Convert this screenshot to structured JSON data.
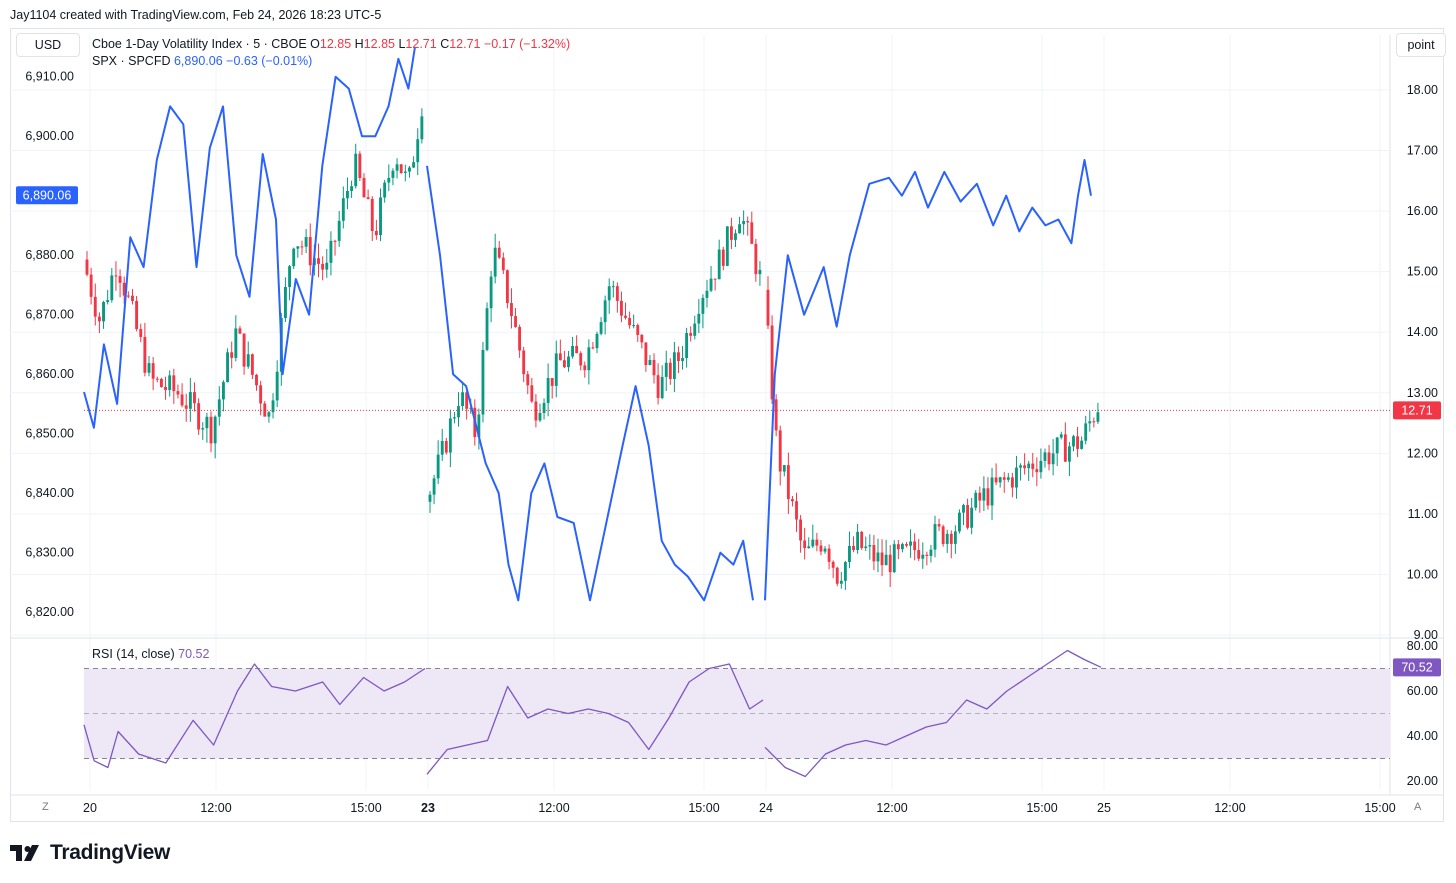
{
  "credit": "Jay1104 created with TradingView.com, Feb 24, 2026 18:23 UTC-5",
  "currency": "USD",
  "scale_mode": "point",
  "brand": "TradingView",
  "corner_left": "Z",
  "corner_right": "A",
  "legend": {
    "vix": {
      "name": "Cboe 1-Day Volatility Index · 5 · CBOE",
      "o_label": "O",
      "o": "12.85",
      "h_label": "H",
      "h": "12.85",
      "l_label": "L",
      "l": "12.71",
      "c_label": "C",
      "c": "12.71",
      "change": "−0.17 (−1.32%)"
    },
    "spx": {
      "name": "SPX · SPCFD",
      "value": "6,890.06",
      "change": "−0.63 (−0.01%)"
    },
    "rsi": {
      "name": "RSI (14, close)",
      "value": "70.52"
    }
  },
  "colors": {
    "up": "#089981",
    "down": "#f23645",
    "spx_line": "#2962ff",
    "rsi_line": "#7e57c2",
    "rsi_band": "#ede7f6",
    "grid": "#f0f3fa"
  },
  "chart_data": [
    {
      "type": "candlestick",
      "name": "Cboe 1-Day Volatility Index · 5 · CBOE",
      "axis": "right",
      "ylim": [
        9,
        18.4
      ],
      "last_price": 12.71,
      "x_ticks": [
        "20",
        "12:00",
        "15:00",
        "23",
        "12:00",
        "15:00",
        "24",
        "12:00",
        "15:00",
        "25",
        "12:00",
        "15:00"
      ],
      "x_ticks_bold": [
        "23"
      ],
      "y_ticks": [
        "18.00",
        "17.00",
        "16.00",
        "15.00",
        "14.00",
        "13.00",
        "12.00",
        "11.00",
        "10.00",
        "9.00"
      ],
      "bar_count": 246,
      "sessions": [
        {
          "day": "20",
          "points": [
            [
              0,
              15.2
            ],
            [
              0.05,
              14.2
            ],
            [
              0.1,
              15.2
            ],
            [
              0.2,
              13.2
            ],
            [
              0.28,
              13.0
            ],
            [
              0.38,
              12.4
            ],
            [
              0.45,
              14.0
            ],
            [
              0.55,
              12.6
            ],
            [
              0.62,
              15.6
            ],
            [
              0.72,
              15.0
            ],
            [
              0.8,
              16.8
            ],
            [
              0.86,
              15.6
            ],
            [
              0.92,
              17.0
            ],
            [
              0.96,
              16.4
            ],
            [
              1.0,
              17.8
            ]
          ]
        },
        {
          "day": "23",
          "points": [
            [
              0,
              11.2
            ],
            [
              0.05,
              12.0
            ],
            [
              0.1,
              13.0
            ],
            [
              0.15,
              12.3
            ],
            [
              0.2,
              15.4
            ],
            [
              0.25,
              14.5
            ],
            [
              0.32,
              12.7
            ],
            [
              0.4,
              13.5
            ],
            [
              0.48,
              13.6
            ],
            [
              0.55,
              14.8
            ],
            [
              0.62,
              14.0
            ],
            [
              0.7,
              13.1
            ],
            [
              0.76,
              13.6
            ],
            [
              0.82,
              14.6
            ],
            [
              0.88,
              15.2
            ],
            [
              0.94,
              16.0
            ],
            [
              0.98,
              15.3
            ],
            [
              1.0,
              14.9
            ]
          ]
        },
        {
          "day": "24",
          "points": [
            [
              0,
              14.7
            ],
            [
              0.04,
              12.0
            ],
            [
              0.08,
              11.2
            ],
            [
              0.12,
              10.3
            ],
            [
              0.18,
              10.6
            ],
            [
              0.22,
              10.0
            ],
            [
              0.28,
              10.5
            ],
            [
              0.35,
              10.2
            ],
            [
              0.42,
              10.3
            ],
            [
              0.5,
              10.6
            ],
            [
              0.58,
              10.8
            ],
            [
              0.66,
              11.3
            ],
            [
              0.74,
              11.6
            ],
            [
              0.82,
              11.9
            ],
            [
              0.9,
              12.1
            ],
            [
              0.95,
              12.2
            ],
            [
              1.0,
              12.8
            ]
          ]
        }
      ]
    },
    {
      "type": "line",
      "name": "SPX · SPCFD",
      "axis": "left",
      "ylim": [
        6816,
        6917
      ],
      "last_value": 6890.06,
      "y_ticks": [
        "6,910.00",
        "6,900.00",
        "6,890.00",
        "6,880.00",
        "6,870.00",
        "6,860.00",
        "6,850.00",
        "6,840.00",
        "6,830.00",
        "6,820.00"
      ],
      "sessions": [
        {
          "day": "20",
          "points": [
            [
              0,
              6857
            ],
            [
              0.03,
              6851
            ],
            [
              0.06,
              6865
            ],
            [
              0.1,
              6855
            ],
            [
              0.14,
              6883
            ],
            [
              0.18,
              6878
            ],
            [
              0.22,
              6896
            ],
            [
              0.26,
              6905
            ],
            [
              0.3,
              6902
            ],
            [
              0.34,
              6878
            ],
            [
              0.38,
              6898
            ],
            [
              0.42,
              6905
            ],
            [
              0.46,
              6880
            ],
            [
              0.5,
              6873
            ],
            [
              0.54,
              6897
            ],
            [
              0.58,
              6886
            ],
            [
              0.6,
              6860
            ],
            [
              0.64,
              6876
            ],
            [
              0.68,
              6870
            ],
            [
              0.72,
              6895
            ],
            [
              0.76,
              6910
            ],
            [
              0.8,
              6908
            ],
            [
              0.84,
              6900
            ],
            [
              0.88,
              6900
            ],
            [
              0.92,
              6905
            ],
            [
              0.95,
              6913
            ],
            [
              0.98,
              6908
            ],
            [
              1.0,
              6915
            ]
          ]
        },
        {
          "day": "23",
          "points": [
            [
              0,
              6895
            ],
            [
              0.04,
              6880
            ],
            [
              0.08,
              6860
            ],
            [
              0.12,
              6858
            ],
            [
              0.18,
              6845
            ],
            [
              0.22,
              6840
            ],
            [
              0.25,
              6828
            ],
            [
              0.28,
              6822
            ],
            [
              0.32,
              6840
            ],
            [
              0.36,
              6845
            ],
            [
              0.4,
              6836
            ],
            [
              0.45,
              6835
            ],
            [
              0.5,
              6822
            ],
            [
              0.55,
              6835
            ],
            [
              0.6,
              6848
            ],
            [
              0.64,
              6858
            ],
            [
              0.68,
              6848
            ],
            [
              0.72,
              6832
            ],
            [
              0.76,
              6828
            ],
            [
              0.8,
              6826
            ],
            [
              0.85,
              6822
            ],
            [
              0.9,
              6830
            ],
            [
              0.94,
              6828
            ],
            [
              0.97,
              6832
            ],
            [
              1.0,
              6822
            ]
          ]
        },
        {
          "day": "24",
          "points": [
            [
              0,
              6822
            ],
            [
              0.03,
              6860
            ],
            [
              0.07,
              6880
            ],
            [
              0.12,
              6870
            ],
            [
              0.18,
              6878
            ],
            [
              0.22,
              6868
            ],
            [
              0.26,
              6880
            ],
            [
              0.32,
              6892
            ],
            [
              0.38,
              6893
            ],
            [
              0.42,
              6890
            ],
            [
              0.46,
              6894
            ],
            [
              0.5,
              6888
            ],
            [
              0.55,
              6894
            ],
            [
              0.6,
              6889
            ],
            [
              0.65,
              6892
            ],
            [
              0.7,
              6885
            ],
            [
              0.74,
              6890
            ],
            [
              0.78,
              6884
            ],
            [
              0.82,
              6888
            ],
            [
              0.86,
              6885
            ],
            [
              0.9,
              6886
            ],
            [
              0.94,
              6882
            ],
            [
              0.96,
              6890
            ],
            [
              0.98,
              6896
            ],
            [
              1.0,
              6890
            ]
          ]
        }
      ]
    },
    {
      "type": "line",
      "name": "RSI (14, close)",
      "ylim": [
        18,
        82
      ],
      "bands": [
        30,
        50,
        70
      ],
      "last_value": 70.52,
      "y_ticks": [
        "80.00",
        "60.00",
        "40.00",
        "20.00"
      ],
      "sessions": [
        {
          "day": "20",
          "points": [
            [
              0,
              45
            ],
            [
              0.03,
              29
            ],
            [
              0.07,
              26
            ],
            [
              0.1,
              42
            ],
            [
              0.16,
              32
            ],
            [
              0.24,
              28
            ],
            [
              0.32,
              47
            ],
            [
              0.38,
              36
            ],
            [
              0.45,
              60
            ],
            [
              0.5,
              72
            ],
            [
              0.55,
              62
            ],
            [
              0.62,
              60
            ],
            [
              0.7,
              64
            ],
            [
              0.75,
              54
            ],
            [
              0.82,
              66
            ],
            [
              0.88,
              60
            ],
            [
              0.94,
              64
            ],
            [
              1.0,
              70
            ]
          ]
        },
        {
          "day": "23",
          "points": [
            [
              0,
              23
            ],
            [
              0.06,
              34
            ],
            [
              0.12,
              36
            ],
            [
              0.18,
              38
            ],
            [
              0.24,
              62
            ],
            [
              0.3,
              48
            ],
            [
              0.36,
              52
            ],
            [
              0.42,
              50
            ],
            [
              0.48,
              52
            ],
            [
              0.54,
              50
            ],
            [
              0.6,
              46
            ],
            [
              0.66,
              34
            ],
            [
              0.72,
              48
            ],
            [
              0.78,
              64
            ],
            [
              0.84,
              70
            ],
            [
              0.9,
              72
            ],
            [
              0.96,
              52
            ],
            [
              1.0,
              56
            ]
          ]
        },
        {
          "day": "24",
          "points": [
            [
              0,
              35
            ],
            [
              0.06,
              26
            ],
            [
              0.12,
              22
            ],
            [
              0.18,
              32
            ],
            [
              0.24,
              36
            ],
            [
              0.3,
              38
            ],
            [
              0.36,
              36
            ],
            [
              0.42,
              40
            ],
            [
              0.48,
              44
            ],
            [
              0.54,
              46
            ],
            [
              0.6,
              56
            ],
            [
              0.66,
              52
            ],
            [
              0.72,
              60
            ],
            [
              0.78,
              66
            ],
            [
              0.84,
              72
            ],
            [
              0.9,
              78
            ],
            [
              0.95,
              74
            ],
            [
              1.0,
              70.52
            ]
          ]
        }
      ]
    }
  ]
}
